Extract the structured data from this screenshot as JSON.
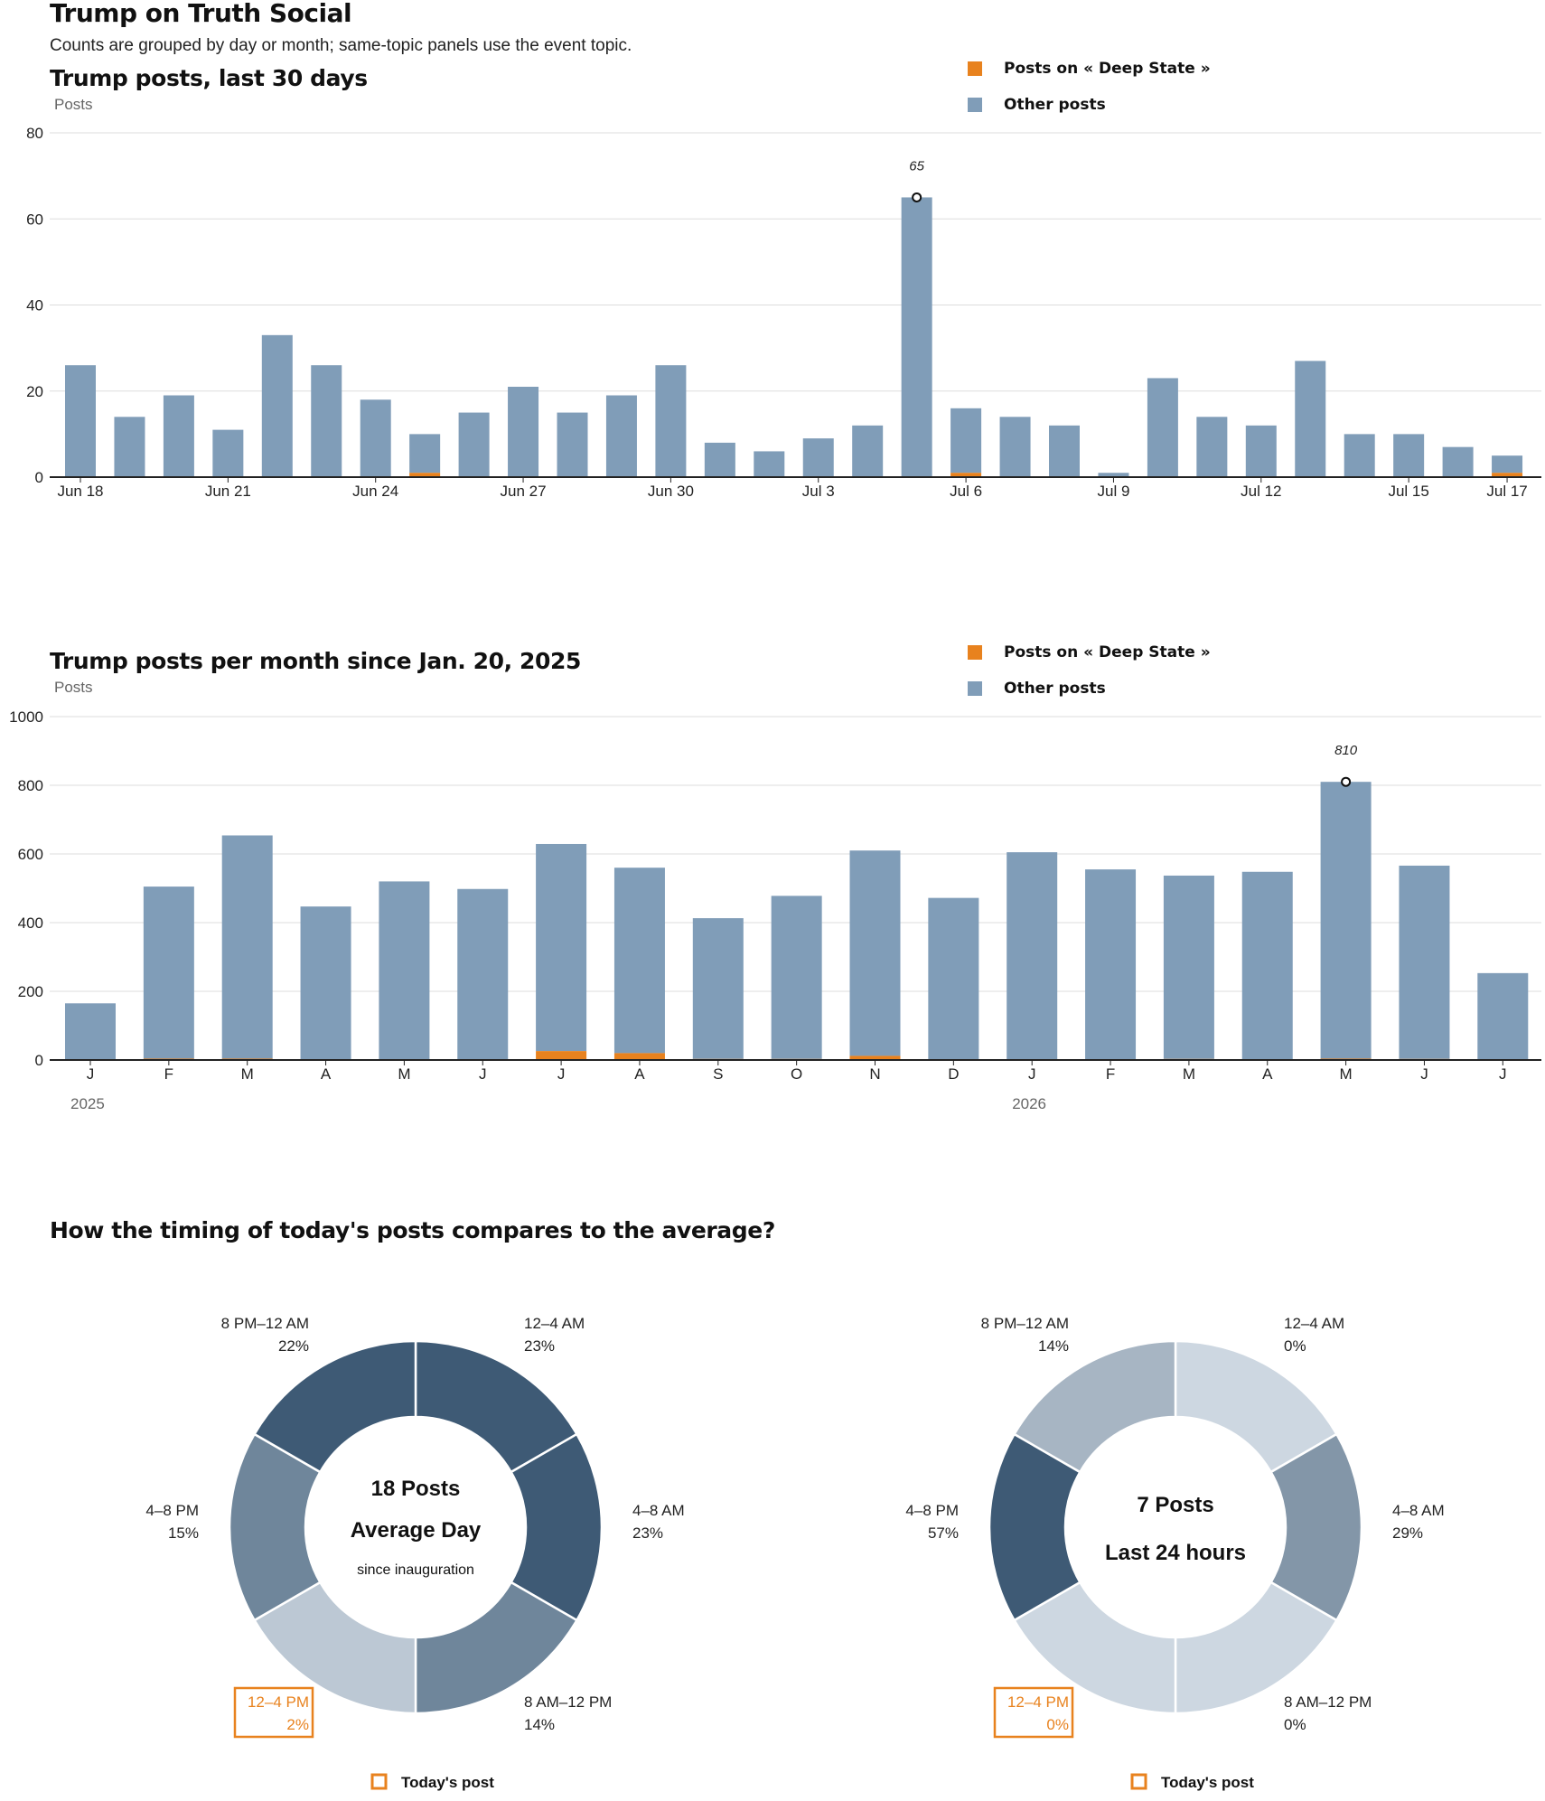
{
  "header": {
    "title": "Trump on Truth Social",
    "subtitle": "Counts are grouped by day or month; same-topic panels use the event topic."
  },
  "colors": {
    "topic": "#e8821e",
    "other": "#809db8",
    "axis": "#222222",
    "grid": "#dddddd",
    "pie_shades": [
      "#3e5a75",
      "#6f869b",
      "#bcc8d4",
      "#cdd7e1",
      "#a7b5c3",
      "#8396a8"
    ]
  },
  "legend": {
    "topic_label": "Posts on « Deep State »",
    "other_label": "Other posts"
  },
  "chart_data": [
    {
      "type": "bar",
      "title": "Trump posts, last 30 days",
      "ylabel": "Posts",
      "ylim": [
        0,
        80
      ],
      "yticks": [
        0,
        20,
        40,
        60,
        80
      ],
      "grid": true,
      "legend_position": "top-right",
      "x": [
        "Jun 18",
        "Jun 19",
        "Jun 20",
        "Jun 21",
        "Jun 22",
        "Jun 23",
        "Jun 24",
        "Jun 25",
        "Jun 26",
        "Jun 27",
        "Jun 28",
        "Jun 29",
        "Jun 30",
        "Jul 1",
        "Jul 2",
        "Jul 3",
        "Jul 4",
        "Jul 5",
        "Jul 6",
        "Jul 7",
        "Jul 8",
        "Jul 9",
        "Jul 10",
        "Jul 11",
        "Jul 12",
        "Jul 13",
        "Jul 14",
        "Jul 15",
        "Jul 16",
        "Jul 17"
      ],
      "xtick_labels": [
        {
          "at": "Jun 18",
          "label": "Jun 18"
        },
        {
          "at": "Jun 21",
          "label": "Jun 21"
        },
        {
          "at": "Jun 24",
          "label": "Jun 24"
        },
        {
          "at": "Jun 27",
          "label": "Jun 27"
        },
        {
          "at": "Jun 30",
          "label": "Jun 30"
        },
        {
          "at": "Jul 3",
          "label": "Jul 3"
        },
        {
          "at": "Jul 6",
          "label": "Jul 6"
        },
        {
          "at": "Jul 9",
          "label": "Jul 9"
        },
        {
          "at": "Jul 12",
          "label": "Jul 12"
        },
        {
          "at": "Jul 15",
          "label": "Jul 15"
        },
        {
          "at": "Jul 17",
          "label": "Jul 17"
        }
      ],
      "series": [
        {
          "name": "Posts on « Deep State »",
          "values": [
            0,
            0,
            0,
            0,
            0,
            0,
            0,
            1,
            0,
            0,
            0,
            0,
            0,
            0,
            0,
            0,
            0,
            0,
            1,
            0,
            0,
            0,
            0,
            0,
            0,
            0,
            0,
            0,
            0,
            1
          ]
        },
        {
          "name": "Other posts",
          "values": [
            26,
            14,
            19,
            11,
            33,
            26,
            18,
            9,
            15,
            21,
            15,
            19,
            26,
            8,
            6,
            9,
            12,
            65,
            15,
            14,
            12,
            1,
            23,
            14,
            12,
            27,
            10,
            10,
            7,
            4
          ]
        }
      ],
      "annotation": {
        "at": "Jul 5",
        "value": 65,
        "label": "65"
      }
    },
    {
      "type": "bar",
      "title": "Trump posts per month since Jan. 20, 2025",
      "ylabel": "Posts",
      "ylim": [
        0,
        1000
      ],
      "yticks": [
        0,
        200,
        400,
        600,
        800,
        1000
      ],
      "grid": true,
      "legend_position": "top-right",
      "categories": [
        "J",
        "F",
        "M",
        "A",
        "M",
        "J",
        "J",
        "A",
        "S",
        "O",
        "N",
        "D",
        "J",
        "F",
        "M",
        "A",
        "M",
        "J",
        "J"
      ],
      "year_labels": [
        {
          "at_index": 0,
          "label": "2025"
        },
        {
          "at_index": 12,
          "label": "2026"
        }
      ],
      "series": [
        {
          "name": "Posts on « Deep State »",
          "values": [
            0,
            4,
            4,
            0,
            0,
            0,
            26,
            20,
            3,
            3,
            12,
            0,
            0,
            0,
            3,
            0,
            4,
            3,
            0
          ]
        },
        {
          "name": "Other posts",
          "values": [
            165,
            501,
            650,
            447,
            520,
            498,
            603,
            540,
            410,
            475,
            598,
            472,
            605,
            555,
            534,
            548,
            806,
            563,
            253
          ]
        }
      ],
      "annotation": {
        "at_index": 16,
        "value": 810,
        "label": "810"
      }
    },
    {
      "type": "pie",
      "section_title": "How the timing of today's posts compares to the average?",
      "center_lines": [
        "18 Posts",
        "Average Day",
        "since inauguration"
      ],
      "slices": [
        {
          "label": "12–4 AM",
          "value": 23,
          "display": "23%",
          "shade": 0
        },
        {
          "label": "4–8 AM",
          "value": 23,
          "display": "23%",
          "shade": 0
        },
        {
          "label": "8 AM–12 PM",
          "value": 14,
          "display": "14%",
          "shade": 1
        },
        {
          "label": "12–4 PM",
          "value": 2,
          "display": "2%",
          "shade": 2,
          "highlight": true
        },
        {
          "label": "4–8 PM",
          "value": 15,
          "display": "15%",
          "shade": 1
        },
        {
          "label": "8 PM–12 AM",
          "value": 22,
          "display": "22%",
          "shade": 0
        }
      ],
      "legend_label": "Today's post"
    },
    {
      "type": "pie",
      "center_lines": [
        "7 Posts",
        "Last 24 hours"
      ],
      "slices": [
        {
          "label": "12–4 AM",
          "value": 0,
          "display": "0%",
          "shade": 3
        },
        {
          "label": "4–8 AM",
          "value": 29,
          "display": "29%",
          "shade": 5
        },
        {
          "label": "8 AM–12 PM",
          "value": 0,
          "display": "0%",
          "shade": 3
        },
        {
          "label": "12–4 PM",
          "value": 0,
          "display": "0%",
          "shade": 3,
          "highlight": true
        },
        {
          "label": "4–8 PM",
          "value": 57,
          "display": "57%",
          "shade": 0
        },
        {
          "label": "8 PM–12 AM",
          "value": 14,
          "display": "14%",
          "shade": 4
        }
      ],
      "legend_label": "Today's post"
    }
  ]
}
